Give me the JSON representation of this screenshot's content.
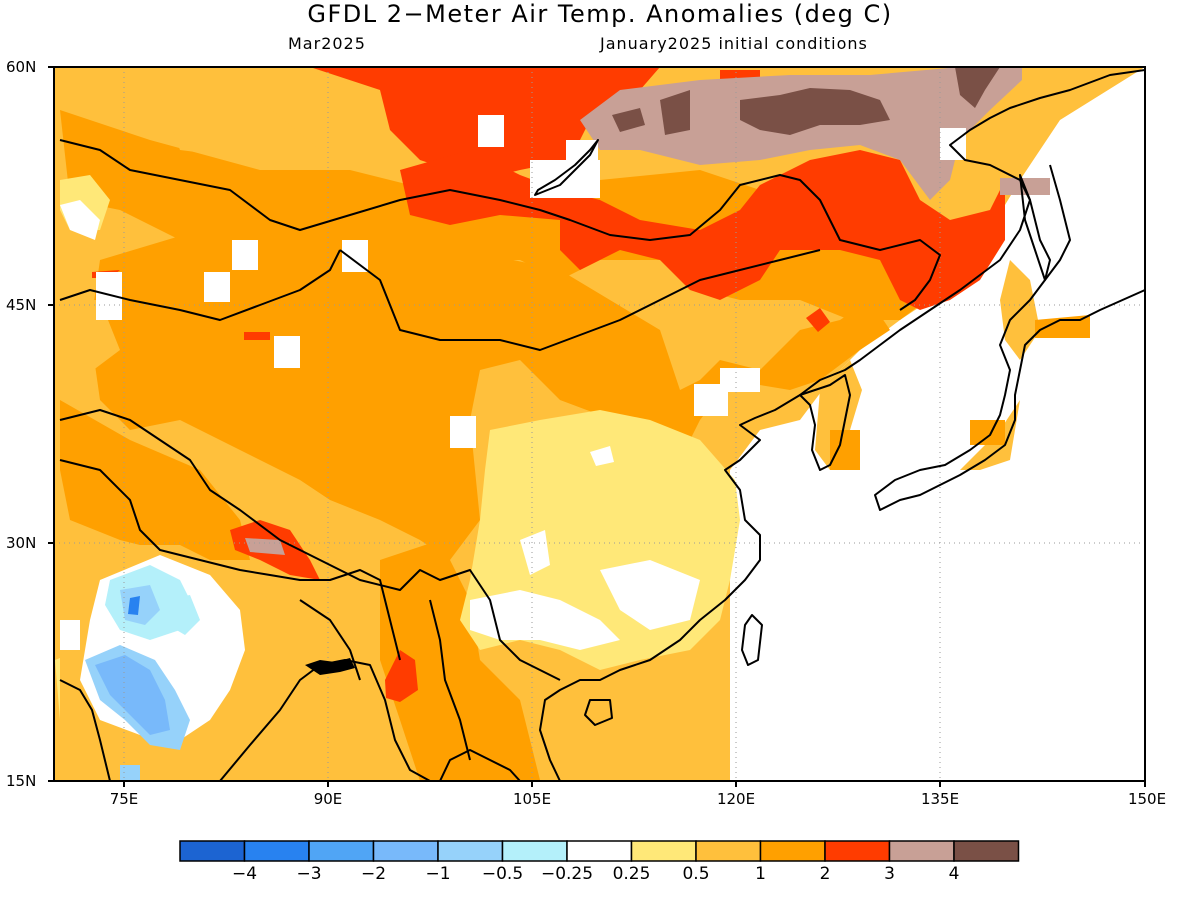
{
  "title": "GFDL 2−Meter Air Temp. Anomalies (deg C)",
  "valid_month": "Mar2025",
  "init_conditions": "January2025 initial conditions",
  "map_extent": {
    "lon_min": 70,
    "lon_max": 150,
    "lat_min": 15,
    "lat_max": 60
  },
  "lat_labels": [
    "60N",
    "45N",
    "30N",
    "15N"
  ],
  "lon_labels": [
    "75E",
    "90E",
    "105E",
    "120E",
    "135E",
    "150E"
  ],
  "colorbar": {
    "labels": [
      "−4",
      "−3",
      "−2",
      "−1",
      "−0.5",
      "−0.25",
      "0.25",
      "0.5",
      "1",
      "2",
      "3",
      "4"
    ],
    "colors": [
      "#1c64d2",
      "#2882f0",
      "#50a5f5",
      "#78b9fa",
      "#96d2fa",
      "#b4f0fa",
      "#ffffff",
      "#ffe878",
      "#ffc03c",
      "#ffa000",
      "#ff3c00",
      "#c8a096",
      "#7a5046"
    ]
  }
}
